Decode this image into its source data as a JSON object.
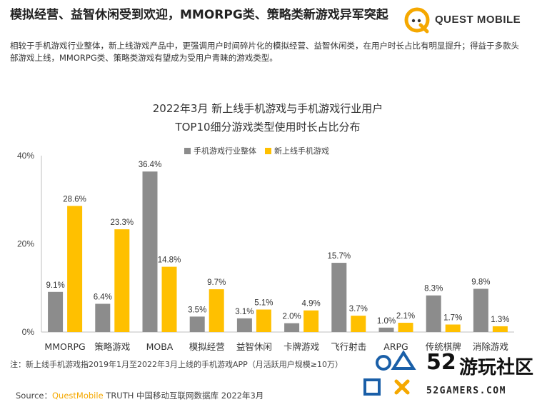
{
  "headline": "模拟经营、益智休闲受到欢迎，MMORPG类、策略类新游戏异军突起",
  "summary": "相较于手机游戏行业整体，新上线游戏产品中，更强调用户时间碎片化的模拟经营、益智休闲类，在用户时长占比有明显提升；得益于多款头部游戏上线，MMORPG类、策略类游戏有望成为受用户青睐的游戏类型。",
  "brand": {
    "name": "QUEST MOBILE"
  },
  "note": "注：新上线手机游戏指2019年1月至2022年3月上线的手机游戏APP（月活跃用户规模≥10万）",
  "source": {
    "prefix": "Source：",
    "brand": "QuestMobile",
    "rest": " TRUTH 中国移动互联网数据库 2022年3月"
  },
  "watermark": {
    "number": "52",
    "name": "游玩社区",
    "url": "52GAMERS.COM"
  },
  "colors": {
    "industry": "#8c8c8c",
    "new": "#ffc000",
    "accent": "#f5a800"
  },
  "chart_data": {
    "type": "bar",
    "title_lines": [
      "2022年3月 新上线手机游戏与手机游戏行业用户",
      "TOP10细分游戏类型使用时长占比分布"
    ],
    "categories": [
      "MMORPG",
      "策略游戏",
      "MOBA",
      "模拟经营",
      "益智休闲",
      "卡牌游戏",
      "飞行射击",
      "ARPG",
      "传统棋牌",
      "消除游戏"
    ],
    "series": [
      {
        "name": "手机游戏行业整体",
        "values": [
          9.1,
          6.4,
          36.4,
          3.5,
          3.1,
          2.0,
          15.7,
          1.0,
          8.3,
          9.8
        ],
        "color": "#8c8c8c"
      },
      {
        "name": "新上线手机游戏",
        "values": [
          28.6,
          23.3,
          14.8,
          9.7,
          5.1,
          4.9,
          3.7,
          2.1,
          1.7,
          1.3
        ],
        "color": "#ffc000"
      }
    ],
    "y_ticks": [
      "0%",
      "20%",
      "40%"
    ],
    "ylim": [
      0,
      40
    ],
    "unit": "%",
    "legend_position": "top",
    "grid": false
  }
}
